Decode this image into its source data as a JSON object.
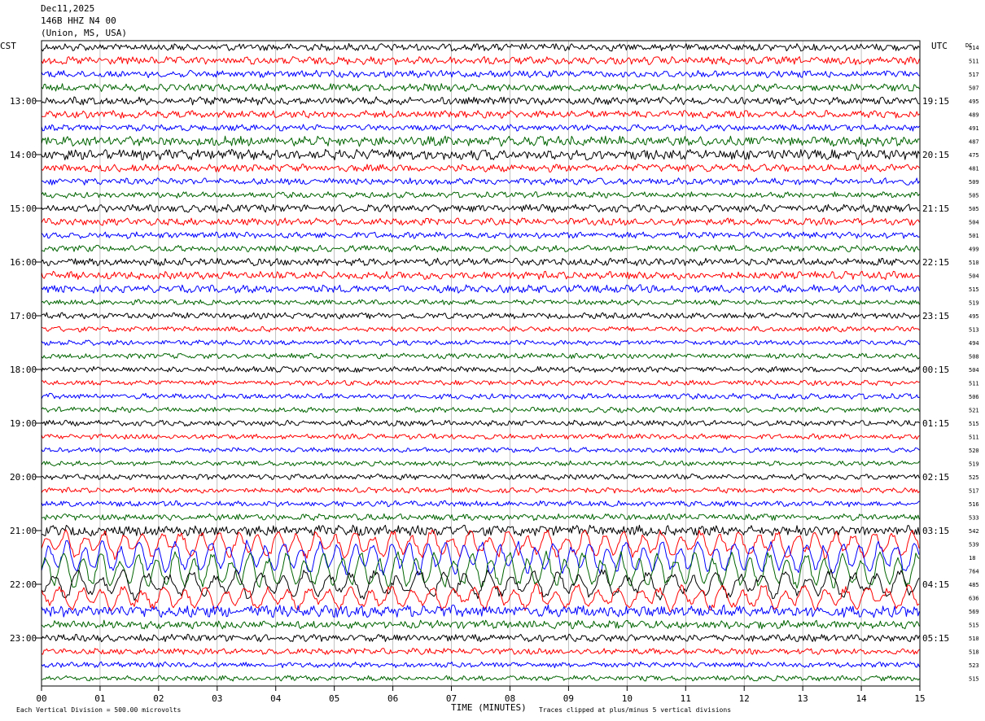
{
  "header": {
    "date": "Dec11,2025",
    "station": "146B HHZ N4 00",
    "location": "(Union, MS, USA)"
  },
  "left_axis_label": "CST",
  "right_axis_label": "UTC",
  "dc_label": "DC",
  "footer": {
    "scale": "Each Vertical Division =  500.00 microvolts",
    "xlabel": "TIME (MINUTES)",
    "clip_note": "Traces clipped at plus/minus 5 vertical divisions"
  },
  "trace_colors": [
    "#000000",
    "#ff0000",
    "#0000ff",
    "#006400"
  ],
  "chart_data": {
    "type": "line",
    "title": "146B HHZ N4 00",
    "xlabel": "TIME (MINUTES)",
    "xlim": [
      0,
      15
    ],
    "x_ticks": [
      "00",
      "01",
      "02",
      "03",
      "04",
      "05",
      "06",
      "07",
      "08",
      "09",
      "10",
      "11",
      "12",
      "13",
      "14",
      "15"
    ],
    "cst_hour_labels": [
      "13:00",
      "14:00",
      "15:00",
      "16:00",
      "17:00",
      "18:00",
      "19:00",
      "20:00",
      "21:00",
      "22:00",
      "23:00"
    ],
    "utc_hour_labels": [
      "19:15",
      "20:15",
      "21:15",
      "22:15",
      "23:15",
      "00:15",
      "01:15",
      "02:15",
      "03:15",
      "04:15",
      "05:15"
    ],
    "dc_offsets": [
      514,
      511,
      517,
      507,
      495,
      489,
      491,
      487,
      475,
      481,
      509,
      505,
      505,
      504,
      501,
      499,
      510,
      504,
      515,
      519,
      495,
      513,
      494,
      508,
      504,
      511,
      506,
      521,
      515,
      511,
      520,
      519,
      525,
      517,
      516,
      533,
      542,
      539,
      18,
      764,
      485,
      636,
      569,
      515,
      510,
      518,
      523,
      515
    ],
    "trace_activity": [
      1.0,
      1.05,
      0.95,
      1.0,
      1.05,
      1.0,
      0.85,
      1.3,
      1.35,
      1.0,
      0.9,
      0.8,
      1.0,
      0.95,
      0.85,
      0.85,
      1.0,
      1.05,
      1.05,
      0.7,
      0.8,
      0.7,
      0.7,
      0.7,
      0.75,
      0.7,
      0.75,
      0.7,
      0.75,
      0.7,
      0.65,
      0.65,
      0.75,
      0.7,
      0.75,
      0.85,
      1.4,
      2.5,
      3.2,
      3.6,
      2.6,
      2.2,
      1.6,
      1.1,
      0.95,
      0.8,
      0.75,
      0.7
    ]
  }
}
